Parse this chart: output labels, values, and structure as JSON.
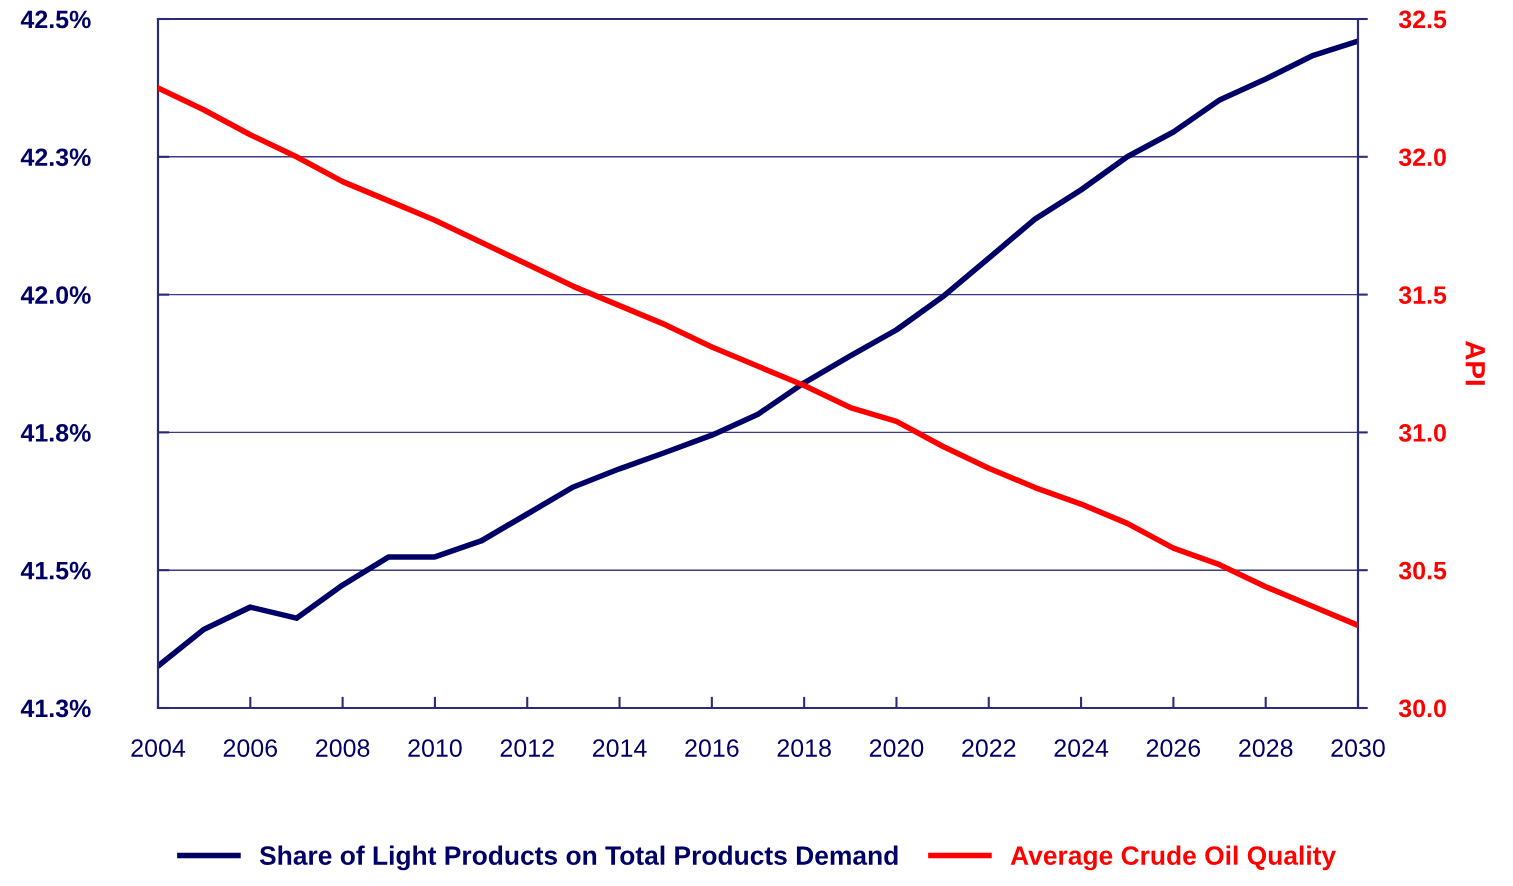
{
  "chart_data": {
    "type": "line",
    "y2label": "API",
    "x": [
      2004,
      2005,
      2006,
      2007,
      2008,
      2009,
      2010,
      2011,
      2012,
      2013,
      2014,
      2015,
      2016,
      2017,
      2018,
      2019,
      2020,
      2021,
      2022,
      2023,
      2024,
      2025,
      2026,
      2027,
      2028,
      2029,
      2030
    ],
    "series": [
      {
        "name": "Share of Light Products on Total Products Demand",
        "color": "#000066",
        "values": [
          41.326,
          41.393,
          41.433,
          41.413,
          41.473,
          41.524,
          41.524,
          41.553,
          41.602,
          41.651,
          41.684,
          41.714,
          41.745,
          41.783,
          41.84,
          41.889,
          41.936,
          41.996,
          42.066,
          42.137,
          42.19,
          42.25,
          42.295,
          42.353,
          42.391,
          42.433,
          42.46
        ]
      },
      {
        "name": "Average Crude Oil Quality",
        "color": "#ff0000",
        "axis": "y2",
        "values": [
          32.25,
          32.17,
          32.08,
          32.0,
          31.91,
          31.84,
          31.77,
          31.69,
          31.61,
          31.53,
          31.46,
          31.39,
          31.31,
          31.24,
          31.17,
          31.09,
          31.04,
          30.95,
          30.87,
          30.8,
          30.74,
          30.67,
          30.58,
          30.52,
          30.44,
          30.37,
          30.3
        ]
      }
    ],
    "xlim": [
      2004,
      2030
    ],
    "xticks": [
      2004,
      2006,
      2008,
      2010,
      2012,
      2014,
      2016,
      2018,
      2020,
      2022,
      2024,
      2026,
      2028,
      2030
    ],
    "ylim": [
      41.25,
      42.5
    ],
    "yticks": [
      {
        "value": 41.25,
        "label": "41.3%"
      },
      {
        "value": 41.5,
        "label": "41.5%"
      },
      {
        "value": 41.75,
        "label": "41.8%"
      },
      {
        "value": 42.0,
        "label": "42.0%"
      },
      {
        "value": 42.25,
        "label": "42.3%"
      },
      {
        "value": 42.5,
        "label": "42.5%"
      }
    ],
    "y2lim": [
      30.0,
      32.5
    ],
    "y2ticks": [
      {
        "value": 30.0,
        "label": "30.0"
      },
      {
        "value": 30.5,
        "label": "30.5"
      },
      {
        "value": 31.0,
        "label": "31.0"
      },
      {
        "value": 31.5,
        "label": "31.5"
      },
      {
        "value": 32.0,
        "label": "32.0"
      },
      {
        "value": 32.5,
        "label": "32.5"
      }
    ],
    "grid": "y",
    "legend": "bottom",
    "marker": "none",
    "line_style": "solid"
  }
}
